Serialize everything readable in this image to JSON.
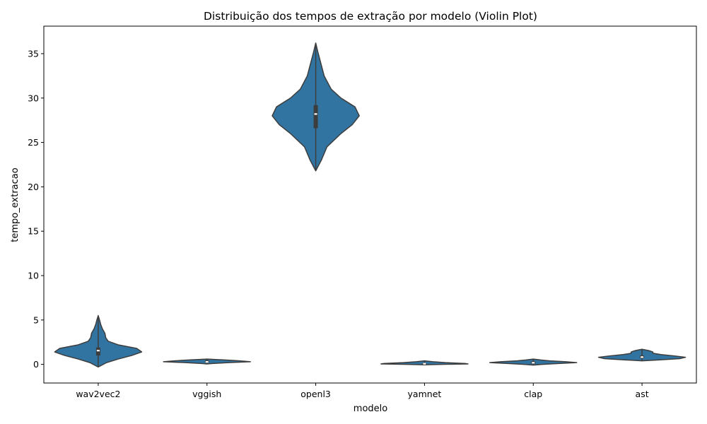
{
  "chart_data": {
    "type": "violin",
    "title": "Distribuição dos tempos de extração por modelo (Violin Plot)",
    "xlabel": "modelo",
    "ylabel": "tempo_extracao",
    "ylim": [
      -2.1,
      38.1
    ],
    "yticks": [
      0,
      5,
      10,
      15,
      20,
      25,
      30,
      35
    ],
    "grid": false,
    "legend": "none",
    "color": "#3274a1",
    "categories": [
      "wav2vec2",
      "vggish",
      "openl3",
      "yamnet",
      "clap",
      "ast"
    ],
    "violins": [
      {
        "category": "wav2vec2",
        "min": -0.3,
        "q1": 1.0,
        "median": 1.55,
        "q3": 1.9,
        "max": 5.5,
        "profile": [
          [
            -0.3,
            0.0
          ],
          [
            0.2,
            0.5
          ],
          [
            0.6,
            1.2
          ],
          [
            1.0,
            2.0
          ],
          [
            1.4,
            2.6
          ],
          [
            1.8,
            2.3
          ],
          [
            2.2,
            1.2
          ],
          [
            2.6,
            0.6
          ],
          [
            3.0,
            0.45
          ],
          [
            3.5,
            0.4
          ],
          [
            4.0,
            0.25
          ],
          [
            4.5,
            0.15
          ],
          [
            5.0,
            0.08
          ],
          [
            5.5,
            0.0
          ]
        ]
      },
      {
        "category": "vggish",
        "min": 0.05,
        "q1": 0.2,
        "median": 0.28,
        "q3": 0.45,
        "max": 0.6,
        "profile": [
          [
            0.05,
            0.0
          ],
          [
            0.1,
            6
          ],
          [
            0.2,
            24
          ],
          [
            0.3,
            48
          ],
          [
            0.4,
            36
          ],
          [
            0.5,
            20
          ],
          [
            0.6,
            0.0
          ]
        ]
      },
      {
        "category": "openl3",
        "min": 21.8,
        "q1": 26.6,
        "median": 28.2,
        "q3": 29.2,
        "max": 36.2,
        "profile": [
          [
            21.8,
            0.0
          ],
          [
            23.0,
            0.4
          ],
          [
            24.5,
            0.8
          ],
          [
            26.0,
            1.8
          ],
          [
            27.0,
            2.6
          ],
          [
            28.0,
            3.1
          ],
          [
            29.0,
            2.8
          ],
          [
            30.0,
            1.8
          ],
          [
            31.0,
            1.1
          ],
          [
            32.5,
            0.6
          ],
          [
            34.0,
            0.35
          ],
          [
            35.2,
            0.15
          ],
          [
            36.2,
            0.0
          ]
        ]
      },
      {
        "category": "yamnet",
        "min": -0.05,
        "q1": 0.0,
        "median": 0.07,
        "q3": 0.15,
        "max": 0.4,
        "profile": [
          [
            -0.05,
            0.0
          ],
          [
            0.0,
            24
          ],
          [
            0.05,
            62
          ],
          [
            0.1,
            58
          ],
          [
            0.2,
            30
          ],
          [
            0.3,
            12
          ],
          [
            0.4,
            0.0
          ]
        ]
      },
      {
        "category": "clap",
        "min": -0.08,
        "q1": 0.05,
        "median": 0.18,
        "q3": 0.35,
        "max": 0.6,
        "profile": [
          [
            -0.08,
            0.0
          ],
          [
            0.0,
            10
          ],
          [
            0.1,
            28
          ],
          [
            0.2,
            48
          ],
          [
            0.3,
            36
          ],
          [
            0.4,
            18
          ],
          [
            0.5,
            8
          ],
          [
            0.6,
            0.0
          ]
        ]
      },
      {
        "category": "ast",
        "min": 0.4,
        "q1": 0.7,
        "median": 0.82,
        "q3": 1.0,
        "max": 1.7,
        "profile": [
          [
            0.4,
            0.0
          ],
          [
            0.5,
            6
          ],
          [
            0.65,
            14
          ],
          [
            0.8,
            16
          ],
          [
            0.95,
            12
          ],
          [
            1.1,
            7
          ],
          [
            1.25,
            4
          ],
          [
            1.4,
            4
          ],
          [
            1.55,
            2.5
          ],
          [
            1.7,
            0.0
          ]
        ]
      }
    ]
  }
}
